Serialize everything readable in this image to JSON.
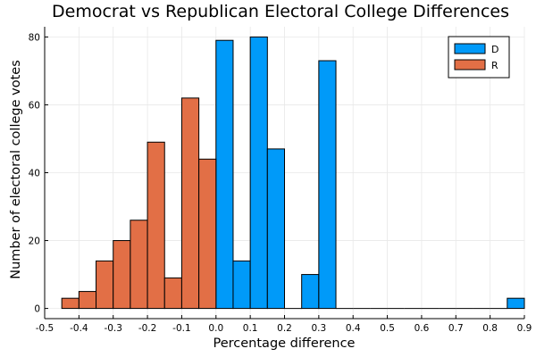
{
  "chart_data": {
    "type": "bar",
    "title": "Democrat vs Republican Electoral College Differences",
    "xlabel": "Percentage difference",
    "ylabel": "Number of electoral college votes",
    "xlim": [
      -0.5,
      0.9
    ],
    "ylim": [
      -3,
      83
    ],
    "x_ticks": [
      -0.5,
      -0.4,
      -0.3,
      -0.2,
      -0.1,
      0.0,
      0.1,
      0.2,
      0.3,
      0.4,
      0.5,
      0.6,
      0.7,
      0.8,
      0.9
    ],
    "x_tick_labels": [
      "-0.5",
      "-0.4",
      "-0.3",
      "-0.2",
      "-0.1",
      "0.0",
      "0.1",
      "0.2",
      "0.3",
      "0.4",
      "0.5",
      "0.6",
      "0.7",
      "0.8",
      "0.9"
    ],
    "y_ticks": [
      0,
      20,
      40,
      60,
      80
    ],
    "y_tick_labels": [
      "0",
      "20",
      "40",
      "60",
      "80"
    ],
    "bin_width": 0.05,
    "grid": true,
    "legend_position": "top-right",
    "series": [
      {
        "name": "D",
        "color": "#009af9",
        "bins": [
          {
            "x0": 0.0,
            "x1": 0.05,
            "value": 79
          },
          {
            "x0": 0.05,
            "x1": 0.1,
            "value": 14
          },
          {
            "x0": 0.1,
            "x1": 0.15,
            "value": 80
          },
          {
            "x0": 0.15,
            "x1": 0.2,
            "value": 47
          },
          {
            "x0": 0.2,
            "x1": 0.25,
            "value": 0
          },
          {
            "x0": 0.25,
            "x1": 0.3,
            "value": 10
          },
          {
            "x0": 0.3,
            "x1": 0.35,
            "value": 73
          },
          {
            "x0": 0.35,
            "x1": 0.4,
            "value": 0
          },
          {
            "x0": 0.4,
            "x1": 0.45,
            "value": 0
          },
          {
            "x0": 0.45,
            "x1": 0.5,
            "value": 0
          },
          {
            "x0": 0.5,
            "x1": 0.55,
            "value": 0
          },
          {
            "x0": 0.55,
            "x1": 0.6,
            "value": 0
          },
          {
            "x0": 0.6,
            "x1": 0.65,
            "value": 0
          },
          {
            "x0": 0.65,
            "x1": 0.7,
            "value": 0
          },
          {
            "x0": 0.7,
            "x1": 0.75,
            "value": 0
          },
          {
            "x0": 0.75,
            "x1": 0.8,
            "value": 0
          },
          {
            "x0": 0.8,
            "x1": 0.85,
            "value": 0
          },
          {
            "x0": 0.85,
            "x1": 0.9,
            "value": 3
          }
        ]
      },
      {
        "name": "R",
        "color": "#e26f46",
        "bins": [
          {
            "x0": -0.45,
            "x1": -0.4,
            "value": 3
          },
          {
            "x0": -0.4,
            "x1": -0.35,
            "value": 5
          },
          {
            "x0": -0.35,
            "x1": -0.3,
            "value": 14
          },
          {
            "x0": -0.3,
            "x1": -0.25,
            "value": 20
          },
          {
            "x0": -0.25,
            "x1": -0.2,
            "value": 26
          },
          {
            "x0": -0.2,
            "x1": -0.15,
            "value": 49
          },
          {
            "x0": -0.15,
            "x1": -0.1,
            "value": 9
          },
          {
            "x0": -0.1,
            "x1": -0.05,
            "value": 62
          },
          {
            "x0": -0.05,
            "x1": 0.0,
            "value": 44
          }
        ]
      }
    ]
  }
}
